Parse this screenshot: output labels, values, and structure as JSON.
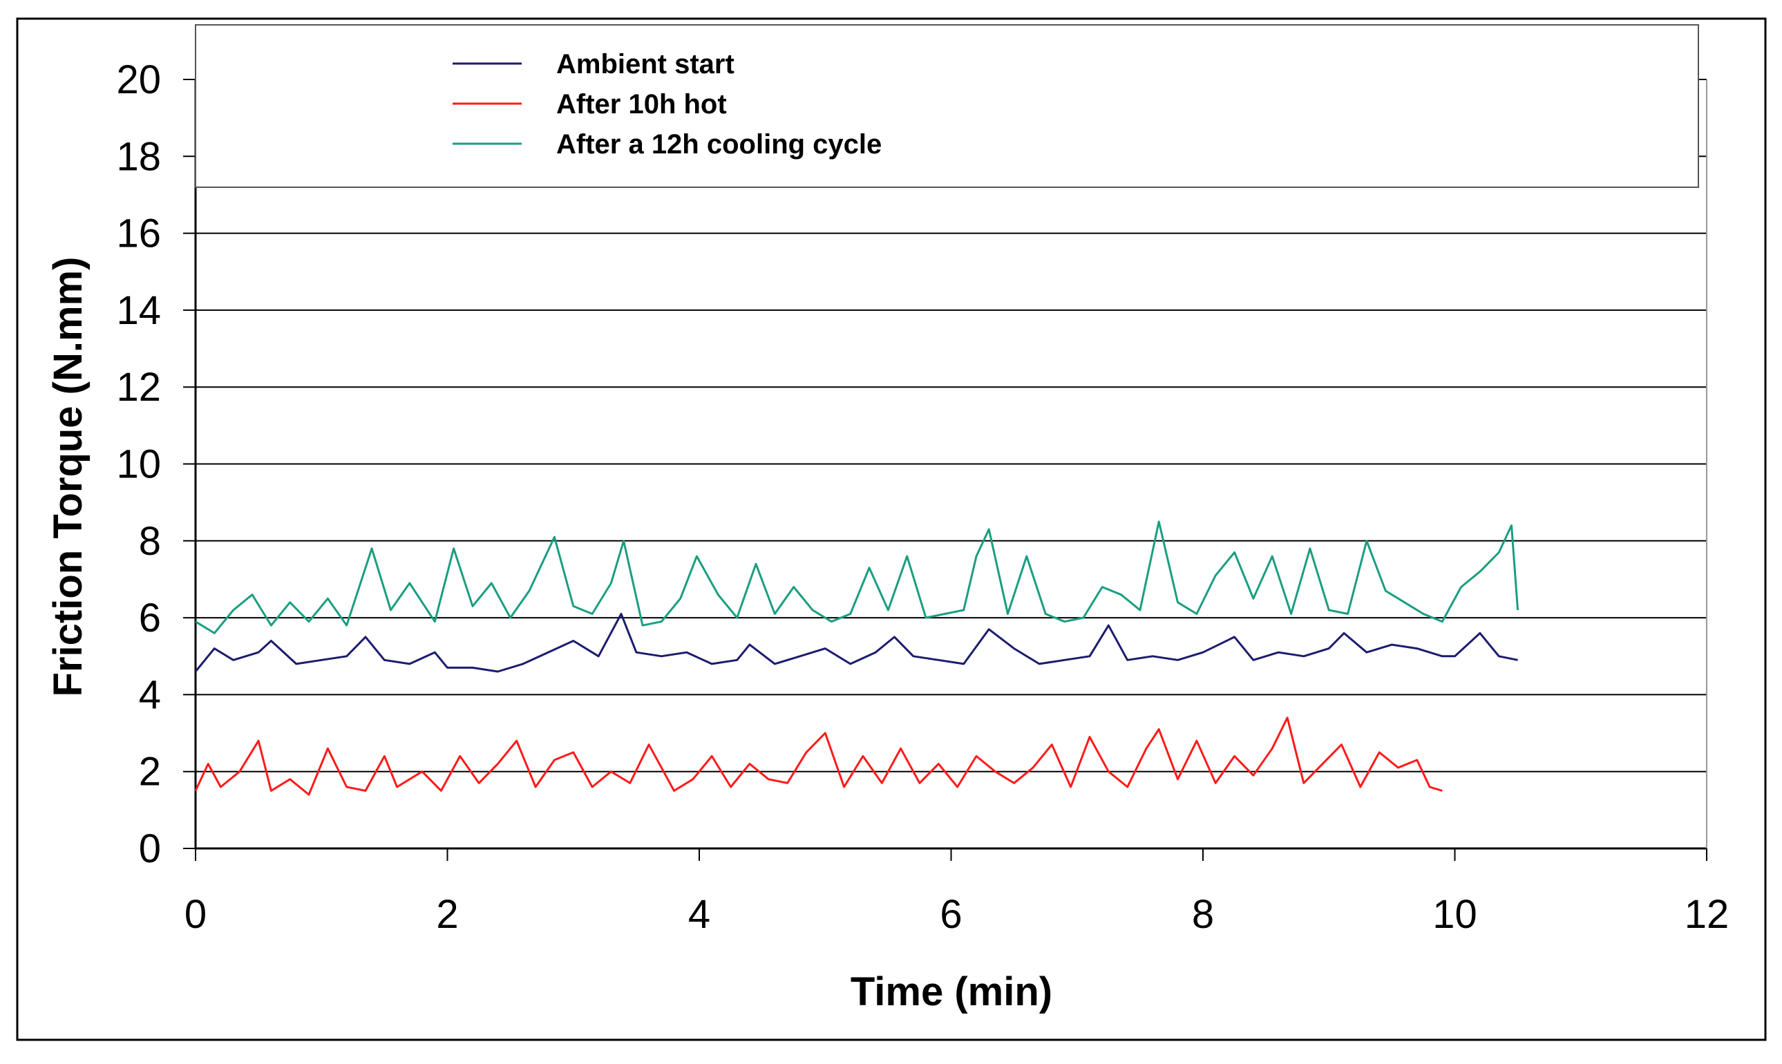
{
  "chart_data": {
    "type": "line",
    "xlabel": "Time (min)",
    "ylabel": "Friction Torque (N.mm)",
    "xlim": [
      0,
      12
    ],
    "ylim": [
      0,
      20
    ],
    "x_ticks": [
      0,
      2,
      4,
      6,
      8,
      10,
      12
    ],
    "y_ticks": [
      0,
      2,
      4,
      6,
      8,
      10,
      12,
      14,
      16,
      18,
      20
    ],
    "grid": "horizontal",
    "legend_position": "top",
    "series": [
      {
        "name": "Ambient start",
        "color": "#1c1c6e",
        "x": [
          0,
          0.15,
          0.3,
          0.5,
          0.6,
          0.8,
          1.0,
          1.2,
          1.35,
          1.5,
          1.7,
          1.9,
          2.0,
          2.2,
          2.4,
          2.6,
          2.8,
          3.0,
          3.2,
          3.38,
          3.5,
          3.7,
          3.9,
          4.1,
          4.3,
          4.4,
          4.6,
          4.8,
          5.0,
          5.2,
          5.4,
          5.55,
          5.7,
          5.9,
          6.1,
          6.3,
          6.5,
          6.7,
          6.9,
          7.1,
          7.25,
          7.4,
          7.6,
          7.8,
          8.0,
          8.25,
          8.4,
          8.6,
          8.8,
          9.0,
          9.12,
          9.3,
          9.5,
          9.7,
          9.9,
          10.0,
          10.2,
          10.35,
          10.5
        ],
        "y": [
          4.6,
          5.2,
          4.9,
          5.1,
          5.4,
          4.8,
          4.9,
          5.0,
          5.5,
          4.9,
          4.8,
          5.1,
          4.7,
          4.7,
          4.6,
          4.8,
          5.1,
          5.4,
          5.0,
          6.1,
          5.1,
          5.0,
          5.1,
          4.8,
          4.9,
          5.3,
          4.8,
          5.0,
          5.2,
          4.8,
          5.1,
          5.5,
          5.0,
          4.9,
          4.8,
          5.7,
          5.2,
          4.8,
          4.9,
          5.0,
          5.8,
          4.9,
          5.0,
          4.9,
          5.1,
          5.5,
          4.9,
          5.1,
          5.0,
          5.2,
          5.6,
          5.1,
          5.3,
          5.2,
          5.0,
          5.0,
          5.6,
          5.0,
          4.9
        ]
      },
      {
        "name": "After 10h hot",
        "color": "#ff1a1a",
        "x": [
          0,
          0.1,
          0.2,
          0.35,
          0.5,
          0.6,
          0.75,
          0.9,
          1.05,
          1.2,
          1.35,
          1.5,
          1.6,
          1.8,
          1.95,
          2.1,
          2.25,
          2.4,
          2.55,
          2.7,
          2.85,
          3.0,
          3.15,
          3.3,
          3.45,
          3.6,
          3.8,
          3.95,
          4.1,
          4.25,
          4.4,
          4.55,
          4.7,
          4.85,
          5.0,
          5.15,
          5.3,
          5.45,
          5.6,
          5.75,
          5.9,
          6.05,
          6.2,
          6.35,
          6.5,
          6.65,
          6.8,
          6.95,
          7.1,
          7.25,
          7.4,
          7.55,
          7.65,
          7.8,
          7.95,
          8.1,
          8.25,
          8.4,
          8.55,
          8.67,
          8.8,
          8.95,
          9.1,
          9.25,
          9.4,
          9.55,
          9.7,
          9.8,
          9.9
        ],
        "y": [
          1.5,
          2.2,
          1.6,
          2.0,
          2.8,
          1.5,
          1.8,
          1.4,
          2.6,
          1.6,
          1.5,
          2.4,
          1.6,
          2.0,
          1.5,
          2.4,
          1.7,
          2.2,
          2.8,
          1.6,
          2.3,
          2.5,
          1.6,
          2.0,
          1.7,
          2.7,
          1.5,
          1.8,
          2.4,
          1.6,
          2.2,
          1.8,
          1.7,
          2.5,
          3.0,
          1.6,
          2.4,
          1.7,
          2.6,
          1.7,
          2.2,
          1.6,
          2.4,
          2.0,
          1.7,
          2.1,
          2.7,
          1.6,
          2.9,
          2.0,
          1.6,
          2.6,
          3.1,
          1.8,
          2.8,
          1.7,
          2.4,
          1.9,
          2.6,
          3.4,
          1.7,
          2.2,
          2.7,
          1.6,
          2.5,
          2.1,
          2.3,
          1.6,
          1.5
        ]
      },
      {
        "name": "After a 12h cooling cycle",
        "color": "#1a9e80",
        "x": [
          0,
          0.15,
          0.3,
          0.45,
          0.6,
          0.75,
          0.9,
          1.05,
          1.2,
          1.4,
          1.55,
          1.7,
          1.9,
          2.05,
          2.2,
          2.35,
          2.5,
          2.65,
          2.85,
          3.0,
          3.15,
          3.3,
          3.4,
          3.55,
          3.7,
          3.85,
          3.98,
          4.15,
          4.3,
          4.45,
          4.6,
          4.75,
          4.9,
          5.05,
          5.2,
          5.35,
          5.5,
          5.65,
          5.8,
          5.95,
          6.1,
          6.2,
          6.3,
          6.45,
          6.6,
          6.75,
          6.9,
          7.05,
          7.2,
          7.35,
          7.5,
          7.65,
          7.8,
          7.95,
          8.1,
          8.25,
          8.4,
          8.55,
          8.7,
          8.85,
          9.0,
          9.15,
          9.3,
          9.45,
          9.6,
          9.75,
          9.9,
          10.05,
          10.2,
          10.35,
          10.45,
          10.5
        ],
        "y": [
          5.9,
          5.6,
          6.2,
          6.6,
          5.8,
          6.4,
          5.9,
          6.5,
          5.8,
          7.8,
          6.2,
          6.9,
          5.9,
          7.8,
          6.3,
          6.9,
          6.0,
          6.7,
          8.1,
          6.3,
          6.1,
          6.9,
          8.0,
          5.8,
          5.9,
          6.5,
          7.6,
          6.6,
          6.0,
          7.4,
          6.1,
          6.8,
          6.2,
          5.9,
          6.1,
          7.3,
          6.2,
          7.6,
          6.0,
          6.1,
          6.2,
          7.6,
          8.3,
          6.1,
          7.6,
          6.1,
          5.9,
          6.0,
          6.8,
          6.6,
          6.2,
          8.5,
          6.4,
          6.1,
          7.1,
          7.7,
          6.5,
          7.6,
          6.1,
          7.8,
          6.2,
          6.1,
          8.0,
          6.7,
          6.4,
          6.1,
          5.9,
          6.8,
          7.2,
          7.7,
          8.4,
          6.2
        ]
      }
    ]
  }
}
